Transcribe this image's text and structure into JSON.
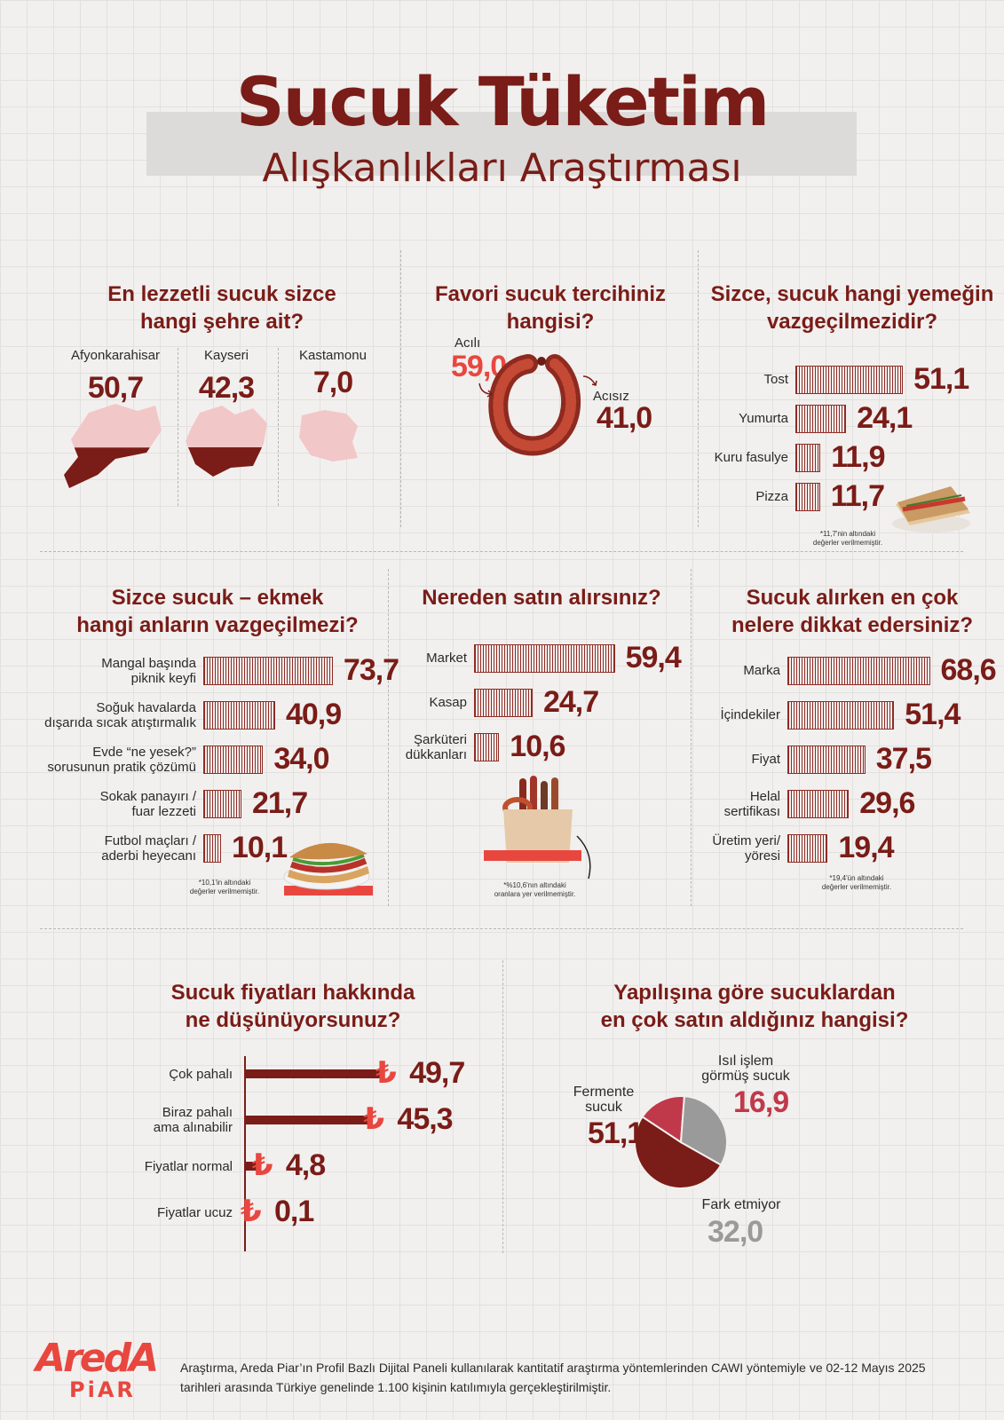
{
  "title": {
    "main": "Sucuk Tüketim",
    "sub": "Alışkanlıkları Araştırması"
  },
  "q1": {
    "question_line1": "En lezzetli sucuk sizce",
    "question_line2": "hangi şehre ait?",
    "cities": [
      {
        "name": "Afyonkarahisar",
        "value": "50,7",
        "fill": 0.507
      },
      {
        "name": "Kayseri",
        "value": "42,3",
        "fill": 0.423
      },
      {
        "name": "Kastamonu",
        "value": "7,0",
        "fill": 0.07
      }
    ]
  },
  "q2": {
    "question": "Favori sucuk tercihiniz hangisi?",
    "spicy_label": "Acılı",
    "spicy_value": "59,0",
    "mild_label": "Acısız",
    "mild_value": "41,0"
  },
  "q3": {
    "question_line1": "Sizce, sucuk hangi yemeğin",
    "question_line2": "vazgeçilmezidir?",
    "items": [
      {
        "label": "Tost",
        "value": "51,1"
      },
      {
        "label": "Yumurta",
        "value": "24,1"
      },
      {
        "label": "Kuru fasulye",
        "value": "11,9"
      },
      {
        "label": "Pizza",
        "value": "11,7"
      }
    ],
    "note_line1": "*11,7'nin altındaki",
    "note_line2": "değerler verilmemiştir."
  },
  "q4": {
    "question_line1": "Sizce sucuk – ekmek",
    "question_line2": "hangi anların vazgeçilmezi?",
    "items": [
      {
        "label1": "Mangal başında",
        "label2": "piknik keyfi",
        "value": "73,7"
      },
      {
        "label1": "Soğuk havalarda",
        "label2": "dışarıda sıcak atıştırmalık",
        "value": "40,9"
      },
      {
        "label1": "Evde “ne yesek?”",
        "label2": "sorusunun pratik çözümü",
        "value": "34,0"
      },
      {
        "label1": "Sokak panayırı /",
        "label2": "fuar lezzeti",
        "value": "21,7"
      },
      {
        "label1": "Futbol maçları /",
        "label2": "aderbi heyecanı",
        "value": "10,1"
      }
    ],
    "note_line1": "*10,1'in altındaki",
    "note_line2": "değerler verilmemiştir."
  },
  "q5": {
    "question": "Nereden satın alırsınız?",
    "items": [
      {
        "label1": "Market",
        "label2": "",
        "value": "59,4"
      },
      {
        "label1": "Kasap",
        "label2": "",
        "value": "24,7"
      },
      {
        "label1": "Şarküteri",
        "label2": "dükkanları",
        "value": "10,6"
      }
    ],
    "note_line1": "*%10,6'nın altındaki",
    "note_line2": "oranlara yer verilmemiştir."
  },
  "q6": {
    "question_line1": "Sucuk alırken en çok",
    "question_line2": "nelere dikkat edersiniz?",
    "items": [
      {
        "label1": "Marka",
        "label2": "",
        "value": "68,6"
      },
      {
        "label1": "İçindekiler",
        "label2": "",
        "value": "51,4"
      },
      {
        "label1": "Fiyat",
        "label2": "",
        "value": "37,5"
      },
      {
        "label1": "Helal",
        "label2": "sertifikası",
        "value": "29,6"
      },
      {
        "label1": "Üretim yeri/",
        "label2": "yöresi",
        "value": "19,4"
      }
    ],
    "note_line1": "*19,4'ün altındaki",
    "note_line2": "değerler verilmemiştir."
  },
  "q7": {
    "question_line1": "Sucuk fiyatları hakkında",
    "question_line2": "ne düşünüyorsunuz?",
    "currency_symbol": "₺",
    "items": [
      {
        "label1": "Çok pahalı",
        "label2": "",
        "value": "49,7"
      },
      {
        "label1": "Biraz pahalı",
        "label2": "ama alınabilir",
        "value": "45,3"
      },
      {
        "label1": "Fiyatlar normal",
        "label2": "",
        "value": "4,8"
      },
      {
        "label1": "Fiyatlar ucuz",
        "label2": "",
        "value": "0,1"
      }
    ]
  },
  "q8": {
    "question_line1": "Yapılışına göre sucuklardan",
    "question_line2": "en çok satın aldığınız hangisi?",
    "slices": [
      {
        "label1": "Fermente",
        "label2": "sucuk",
        "value": "51,1",
        "color": "#7a1c17"
      },
      {
        "label1": "Isıl işlem",
        "label2": "görmüş sucuk",
        "value": "16,9",
        "color": "#c0394a"
      },
      {
        "label1": "Fark etmiyor",
        "label2": "",
        "value": "32,0",
        "color": "#9a9a9a"
      }
    ]
  },
  "chart_data": [
    {
      "type": "bar",
      "title": "En lezzetli sucuk sizce hangi şehre ait?",
      "categories": [
        "Afyonkarahisar",
        "Kayseri",
        "Kastamonu"
      ],
      "values": [
        50.7,
        42.3,
        7.0
      ]
    },
    {
      "type": "pie",
      "title": "Favori sucuk tercihiniz hangisi?",
      "categories": [
        "Acılı",
        "Acısız"
      ],
      "values": [
        59.0,
        41.0
      ]
    },
    {
      "type": "bar",
      "title": "Sizce, sucuk hangi yemeğin vazgeçilmezidir?",
      "categories": [
        "Tost",
        "Yumurta",
        "Kuru fasulye",
        "Pizza"
      ],
      "values": [
        51.1,
        24.1,
        11.9,
        11.7
      ]
    },
    {
      "type": "bar",
      "title": "Sizce sucuk – ekmek hangi anların vazgeçilmezi?",
      "categories": [
        "Mangal başında piknik keyfi",
        "Soğuk havalarda dışarıda sıcak atıştırmalık",
        "Evde “ne yesek?” sorusunun pratik çözümü",
        "Sokak panayırı / fuar lezzeti",
        "Futbol maçları / aderbi heyecanı"
      ],
      "values": [
        73.7,
        40.9,
        34.0,
        21.7,
        10.1
      ]
    },
    {
      "type": "bar",
      "title": "Nereden satın alırsınız?",
      "categories": [
        "Market",
        "Kasap",
        "Şarküteri dükkanları"
      ],
      "values": [
        59.4,
        24.7,
        10.6
      ]
    },
    {
      "type": "bar",
      "title": "Sucuk alırken en çok nelere dikkat edersiniz?",
      "categories": [
        "Marka",
        "İçindekiler",
        "Fiyat",
        "Helal sertifikası",
        "Üretim yeri/ yöresi"
      ],
      "values": [
        68.6,
        51.4,
        37.5,
        29.6,
        19.4
      ]
    },
    {
      "type": "bar",
      "title": "Sucuk fiyatları hakkında ne düşünüyorsunuz?",
      "categories": [
        "Çok pahalı",
        "Biraz pahalı ama alınabilir",
        "Fiyatlar normal",
        "Fiyatlar ucuz"
      ],
      "values": [
        49.7,
        45.3,
        4.8,
        0.1
      ]
    },
    {
      "type": "pie",
      "title": "Yapılışına göre sucuklardan en çok satın aldığınız hangisi?",
      "categories": [
        "Fermente sucuk",
        "Isıl işlem görmüş sucuk",
        "Fark etmiyor"
      ],
      "values": [
        51.1,
        16.9,
        32.0
      ]
    }
  ],
  "footer": {
    "logo_top": "AredA",
    "logo_bottom": "PiAR",
    "text": "Araştırma, Areda Piar’ın Profil Bazlı Dijital Paneli kullanılarak kantitatif araştırma yöntemlerinden CAWI yöntemiyle ve 02-12 Mayıs 2025 tarihleri arasında Türkiye genelinde 1.100 kişinin katılımıyla gerçekleştirilmiştir."
  }
}
